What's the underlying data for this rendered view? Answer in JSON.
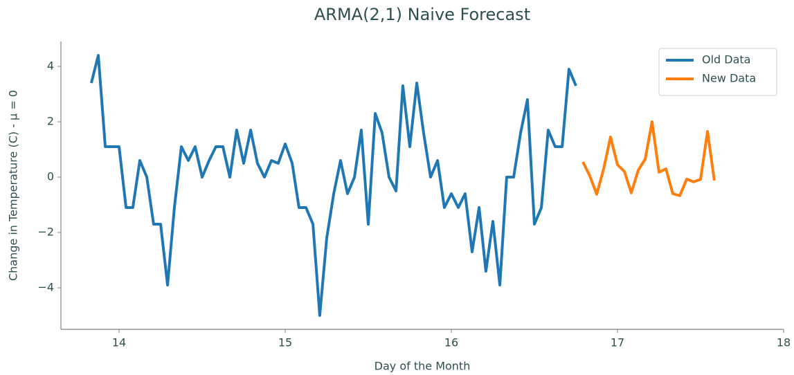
{
  "chart_data": {
    "type": "line",
    "title": "ARMA(2,1) Naive Forecast",
    "x_label": "Day of the Month",
    "y_label": "Change in Temperature (C) - μ = 0",
    "xlim": [
      13.65,
      18
    ],
    "ylim": [
      -5.5,
      4.9
    ],
    "xticks": [
      14,
      15,
      16,
      17,
      18
    ],
    "yticks": [
      {
        "value": -4,
        "label": "−4"
      },
      {
        "value": -2,
        "label": "−2"
      },
      0,
      2,
      4
    ],
    "legend": "upper right",
    "series": [
      {
        "name": "Old Data",
        "color": "#1f77b4",
        "x": [
          13.833,
          13.875,
          13.917,
          13.958,
          14.0,
          14.042,
          14.083,
          14.125,
          14.167,
          14.208,
          14.25,
          14.292,
          14.333,
          14.375,
          14.417,
          14.458,
          14.5,
          14.542,
          14.583,
          14.625,
          14.667,
          14.708,
          14.75,
          14.792,
          14.833,
          14.875,
          14.917,
          14.958,
          15.0,
          15.042,
          15.083,
          15.125,
          15.167,
          15.208,
          15.25,
          15.292,
          15.333,
          15.375,
          15.417,
          15.458,
          15.5,
          15.542,
          15.583,
          15.625,
          15.667,
          15.708,
          15.75,
          15.792,
          15.833,
          15.875,
          15.917,
          15.958,
          16.0,
          16.042,
          16.083,
          16.125,
          16.167,
          16.208,
          16.25,
          16.292,
          16.333,
          16.375,
          16.417,
          16.458,
          16.5,
          16.542,
          16.583,
          16.625,
          16.667,
          16.708,
          16.75
        ],
        "values": [
          3.4,
          4.4,
          1.1,
          1.1,
          1.1,
          -1.1,
          -1.1,
          0.6,
          0.0,
          -1.7,
          -1.7,
          -3.9,
          -1.1,
          1.1,
          0.6,
          1.1,
          0.0,
          0.6,
          1.1,
          1.1,
          0.0,
          1.7,
          0.5,
          1.7,
          0.5,
          0.0,
          0.6,
          0.5,
          1.2,
          0.5,
          -1.1,
          -1.1,
          -1.7,
          -5.0,
          -2.2,
          -0.6,
          0.6,
          -0.6,
          0.0,
          1.7,
          -1.7,
          2.3,
          1.6,
          0.0,
          -0.5,
          3.3,
          1.1,
          3.4,
          1.6,
          0.0,
          0.6,
          -1.1,
          -0.6,
          -1.1,
          -0.6,
          -2.7,
          -1.1,
          -3.4,
          -1.6,
          -3.9,
          0.0,
          0.0,
          1.6,
          2.8,
          -1.7,
          -1.1,
          1.7,
          1.1,
          1.1,
          3.9,
          3.3
        ]
      },
      {
        "name": "New Data",
        "color": "#ff7f0e",
        "x": [
          16.792,
          16.833,
          16.875,
          16.917,
          16.958,
          17.0,
          17.042,
          17.083,
          17.125,
          17.167,
          17.208,
          17.25,
          17.292,
          17.333,
          17.375,
          17.417,
          17.458,
          17.5,
          17.542,
          17.583
        ],
        "values": [
          0.55,
          0.05,
          -0.62,
          0.3,
          1.45,
          0.45,
          0.2,
          -0.57,
          0.25,
          0.65,
          2.0,
          0.18,
          0.3,
          -0.6,
          -0.67,
          -0.07,
          -0.17,
          -0.08,
          1.65,
          -0.12
        ]
      }
    ]
  }
}
